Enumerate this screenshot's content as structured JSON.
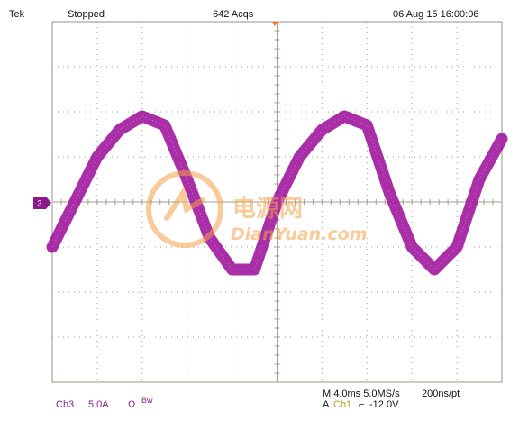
{
  "header": {
    "brand": "Tek",
    "run_state": "Stopped",
    "acquisitions": "642 Acqs",
    "datetime": "06 Aug 15 16:00:06"
  },
  "channel_marker": "3",
  "footer": {
    "channel": "Ch3",
    "scale": "5.0A",
    "ohm_symbol": "Ω",
    "bw_label": "Bw",
    "timebase": "M 4.0ms 5.0MS/s",
    "record": "200ns/pt",
    "trigger_prefix": "A",
    "trigger_source": "Ch1",
    "trigger_slope": "⌐",
    "trigger_level": "-12.0V"
  },
  "watermark": {
    "cn_text": "电源网",
    "en_text": "DianYuan.com"
  },
  "colors": {
    "trace": "#a0179e",
    "grid": "#a69f8f",
    "trigger_marker": "#ff6600",
    "footer_channel": "#8a1c8a",
    "footer_trigger": "#c49a1a",
    "watermark": "#f5a24a"
  },
  "chart_data": {
    "type": "line",
    "title": "",
    "xlabel": "",
    "ylabel": "",
    "x_divisions": 10,
    "y_divisions": 8,
    "series": [
      {
        "x": [
          0,
          0.5,
          1,
          1.5,
          2,
          2.5,
          3,
          3.5,
          4,
          4.5,
          5,
          5.5,
          6,
          6.5,
          7,
          7.5,
          8,
          8.5,
          9,
          9.5,
          10
        ],
        "y": [
          -1.0,
          0.0,
          1.0,
          1.6,
          1.9,
          1.7,
          0.5,
          -0.8,
          -1.5,
          -1.5,
          0.0,
          1.0,
          1.6,
          1.9,
          1.7,
          0.2,
          -1.0,
          -1.5,
          -1.0,
          0.5,
          1.4
        ]
      }
    ]
  }
}
